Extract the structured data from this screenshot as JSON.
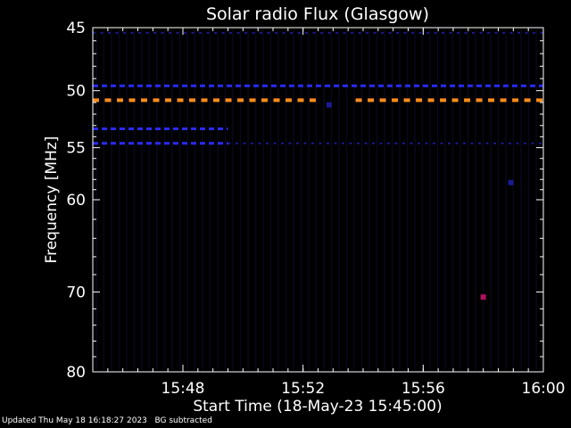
{
  "chart_data": {
    "type": "heatmap",
    "title": "Solar radio Flux (Glasgow)",
    "xlabel": "Start Time (18-May-23 15:45:00)",
    "ylabel": "Frequency [MHz]",
    "x_range": [
      "15:45",
      "16:00"
    ],
    "y_range": [
      45,
      80
    ],
    "y_scale": "log",
    "x_ticks": [
      "15:48",
      "15:52",
      "15:56",
      "16:00"
    ],
    "y_ticks": [
      45,
      50,
      55,
      60,
      70,
      80
    ],
    "grid": false,
    "colors": {
      "background": "#000000",
      "axes": "#ffffff",
      "hot_band": "#ff8c1a",
      "blue_band": "#2a2aff",
      "dark_band": "#1a1a90",
      "speck": "#b01060"
    },
    "bands": [
      {
        "freq": 49.6,
        "start": "15:45",
        "end": "16:00",
        "intensity": "low",
        "color_key": "blue_band"
      },
      {
        "freq": 50.8,
        "start": "15:45",
        "end": "15:52:30",
        "intensity": "high",
        "color_key": "hot_band"
      },
      {
        "freq": 50.8,
        "start": "15:53:45",
        "end": "16:00",
        "intensity": "high",
        "color_key": "hot_band"
      },
      {
        "freq": 53.3,
        "start": "15:45",
        "end": "15:49:30",
        "intensity": "low",
        "color_key": "blue_band"
      },
      {
        "freq": 54.6,
        "start": "15:45",
        "end": "15:49:30",
        "intensity": "low",
        "color_key": "blue_band"
      },
      {
        "freq": 54.6,
        "start": "15:49:30",
        "end": "16:00",
        "intensity": "very-low",
        "color_key": "dark_band"
      },
      {
        "freq": 45.4,
        "start": "15:45",
        "end": "16:00",
        "intensity": "very-low",
        "color_key": "dark_band"
      }
    ],
    "hotspots": [
      {
        "time": "15:58",
        "freq": 70.6,
        "color_key": "speck"
      },
      {
        "time": "15:52:52",
        "freq": 51.2,
        "color_key": "dark_band"
      },
      {
        "time": "15:58:55",
        "freq": 58.3,
        "color_key": "dark_band"
      }
    ]
  },
  "footer": {
    "updated": "Updated Thu May 18 16:18:27 2023",
    "note": "BG subtracted"
  }
}
